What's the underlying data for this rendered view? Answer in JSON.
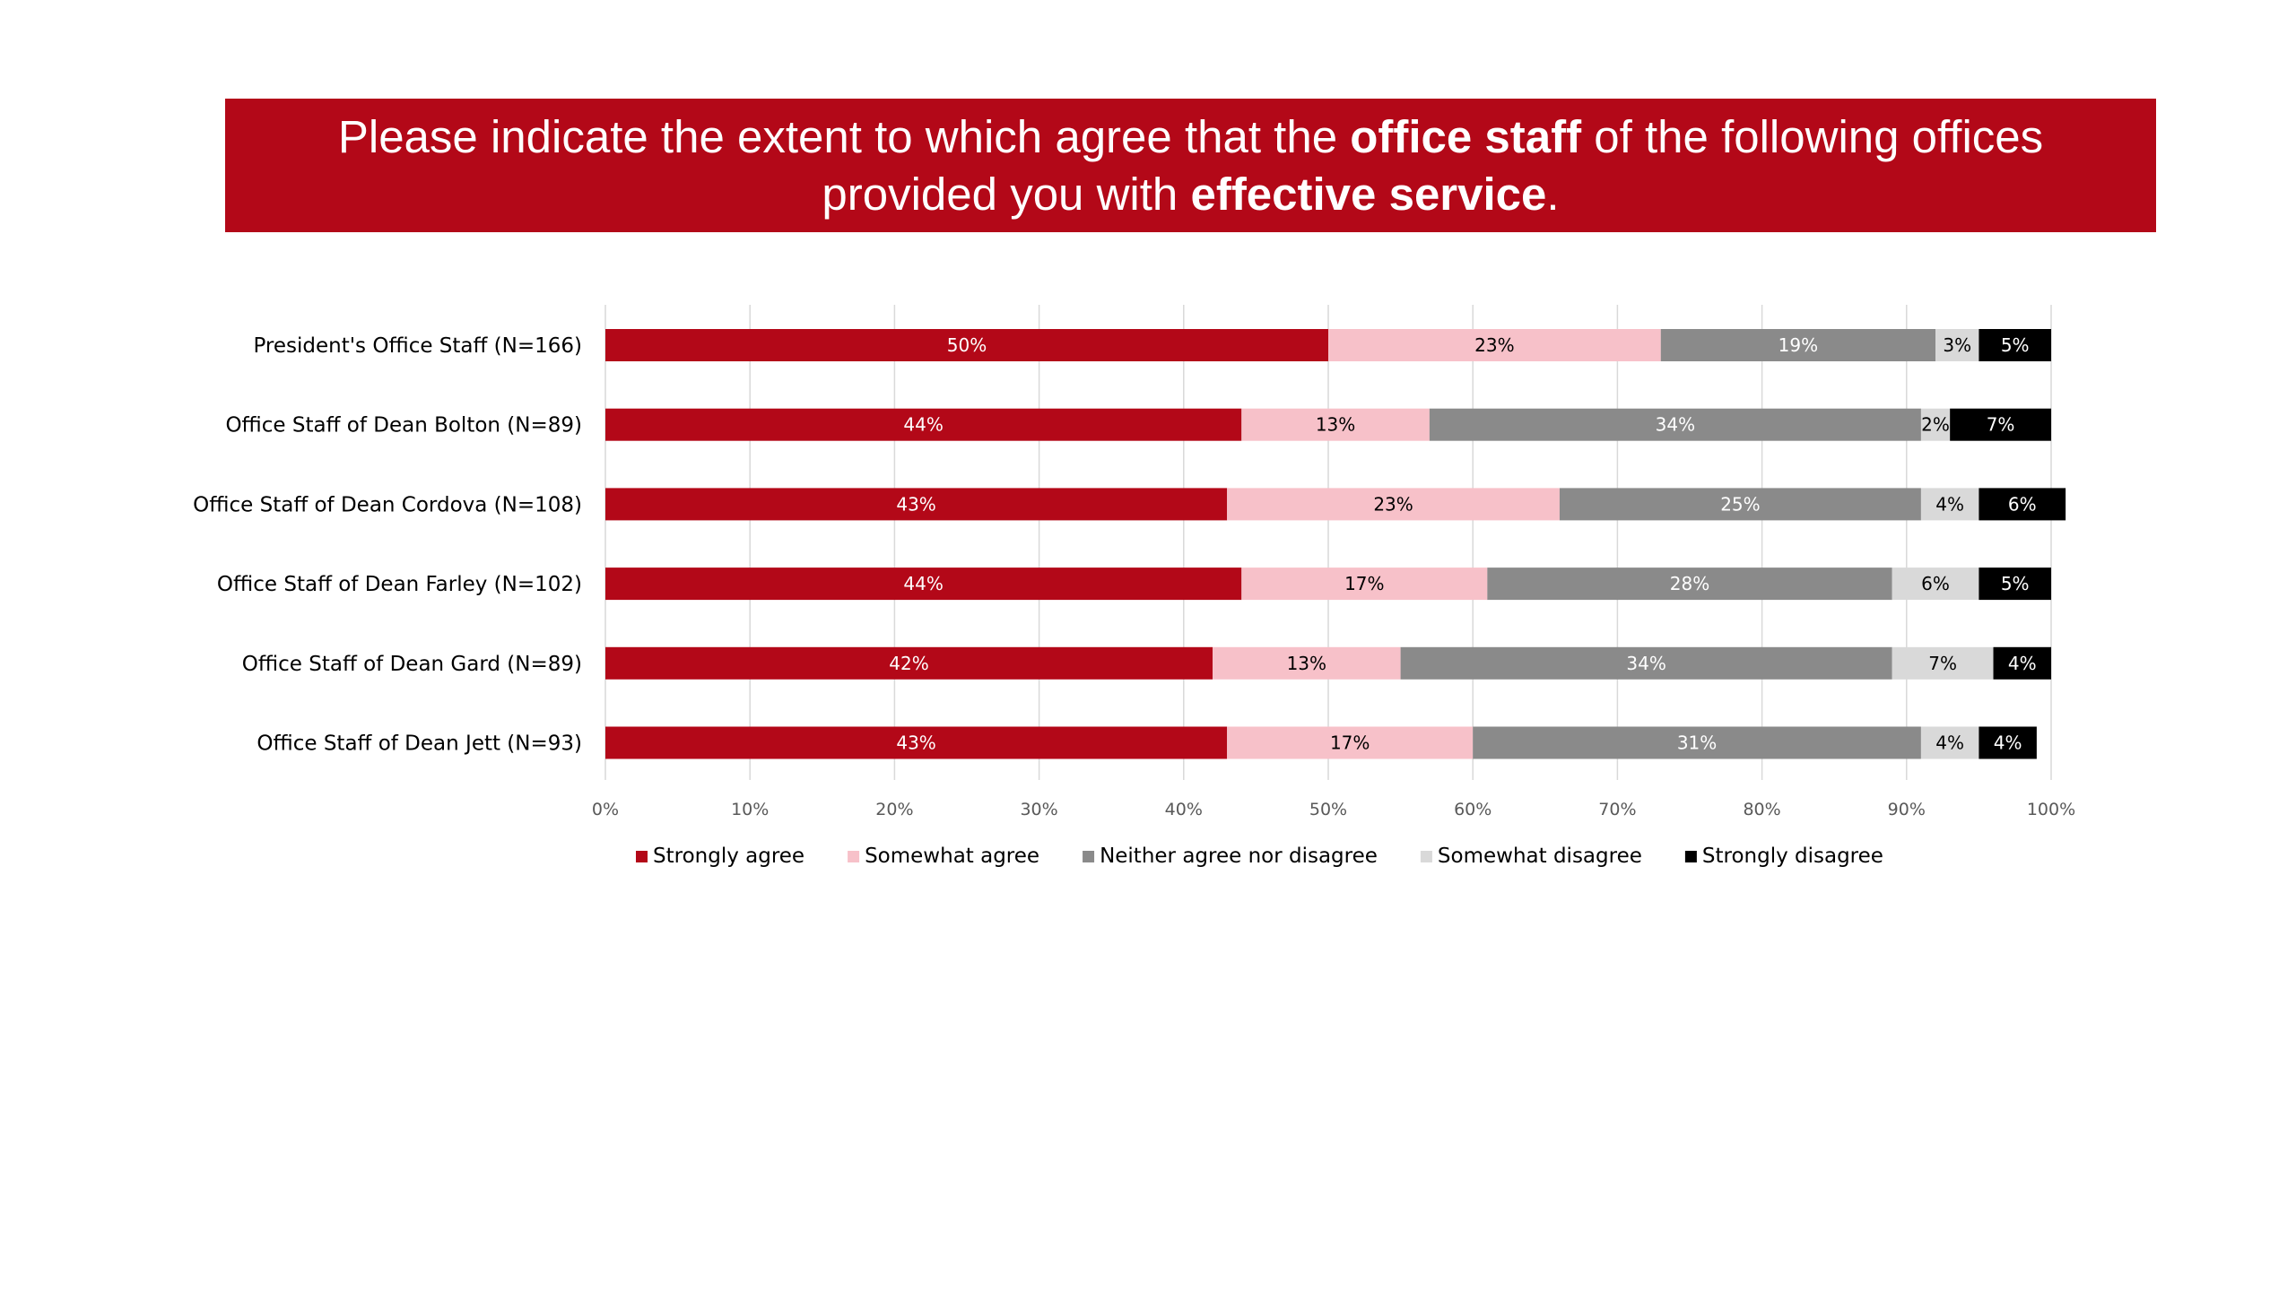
{
  "title": {
    "line1_pre": "Please indicate the extent to which agree that the ",
    "line1_bold": "office staff",
    "line1_post": " of the following offices",
    "line2_pre": "provided you with ",
    "line2_bold": "effective service",
    "line2_post": "."
  },
  "chart_data": {
    "type": "bar",
    "orientation": "horizontal",
    "stacked": "percent",
    "categories": [
      "President's Office Staff (N=166)",
      "Office Staff of Dean Bolton (N=89)",
      "Office Staff of Dean Cordova (N=108)",
      "Office Staff of Dean Farley (N=102)",
      "Office Staff of Dean Gard (N=89)",
      "Office Staff of Dean Jett (N=93)"
    ],
    "series": [
      {
        "name": "Strongly agree",
        "color": "#b30818",
        "label_color": "#ffffff",
        "values": [
          50,
          44,
          43,
          44,
          42,
          43
        ]
      },
      {
        "name": "Somewhat agree",
        "color": "#f7c1c9",
        "label_color": "#000000",
        "values": [
          23,
          13,
          23,
          17,
          13,
          17
        ]
      },
      {
        "name": "Neither agree nor disagree",
        "color": "#8a8a8a",
        "label_color": "#ffffff",
        "values": [
          19,
          34,
          25,
          28,
          34,
          31
        ]
      },
      {
        "name": "Somewhat disagree",
        "color": "#d9d9d9",
        "label_color": "#000000",
        "values": [
          3,
          2,
          4,
          6,
          7,
          4
        ]
      },
      {
        "name": "Strongly disagree",
        "color": "#000000",
        "label_color": "#ffffff",
        "values": [
          5,
          7,
          6,
          5,
          4,
          4
        ]
      }
    ],
    "xlim": [
      0,
      100
    ],
    "xticks": [
      "0%",
      "10%",
      "20%",
      "30%",
      "40%",
      "50%",
      "60%",
      "70%",
      "80%",
      "90%",
      "100%"
    ],
    "grid": true,
    "legend": "bottom"
  }
}
